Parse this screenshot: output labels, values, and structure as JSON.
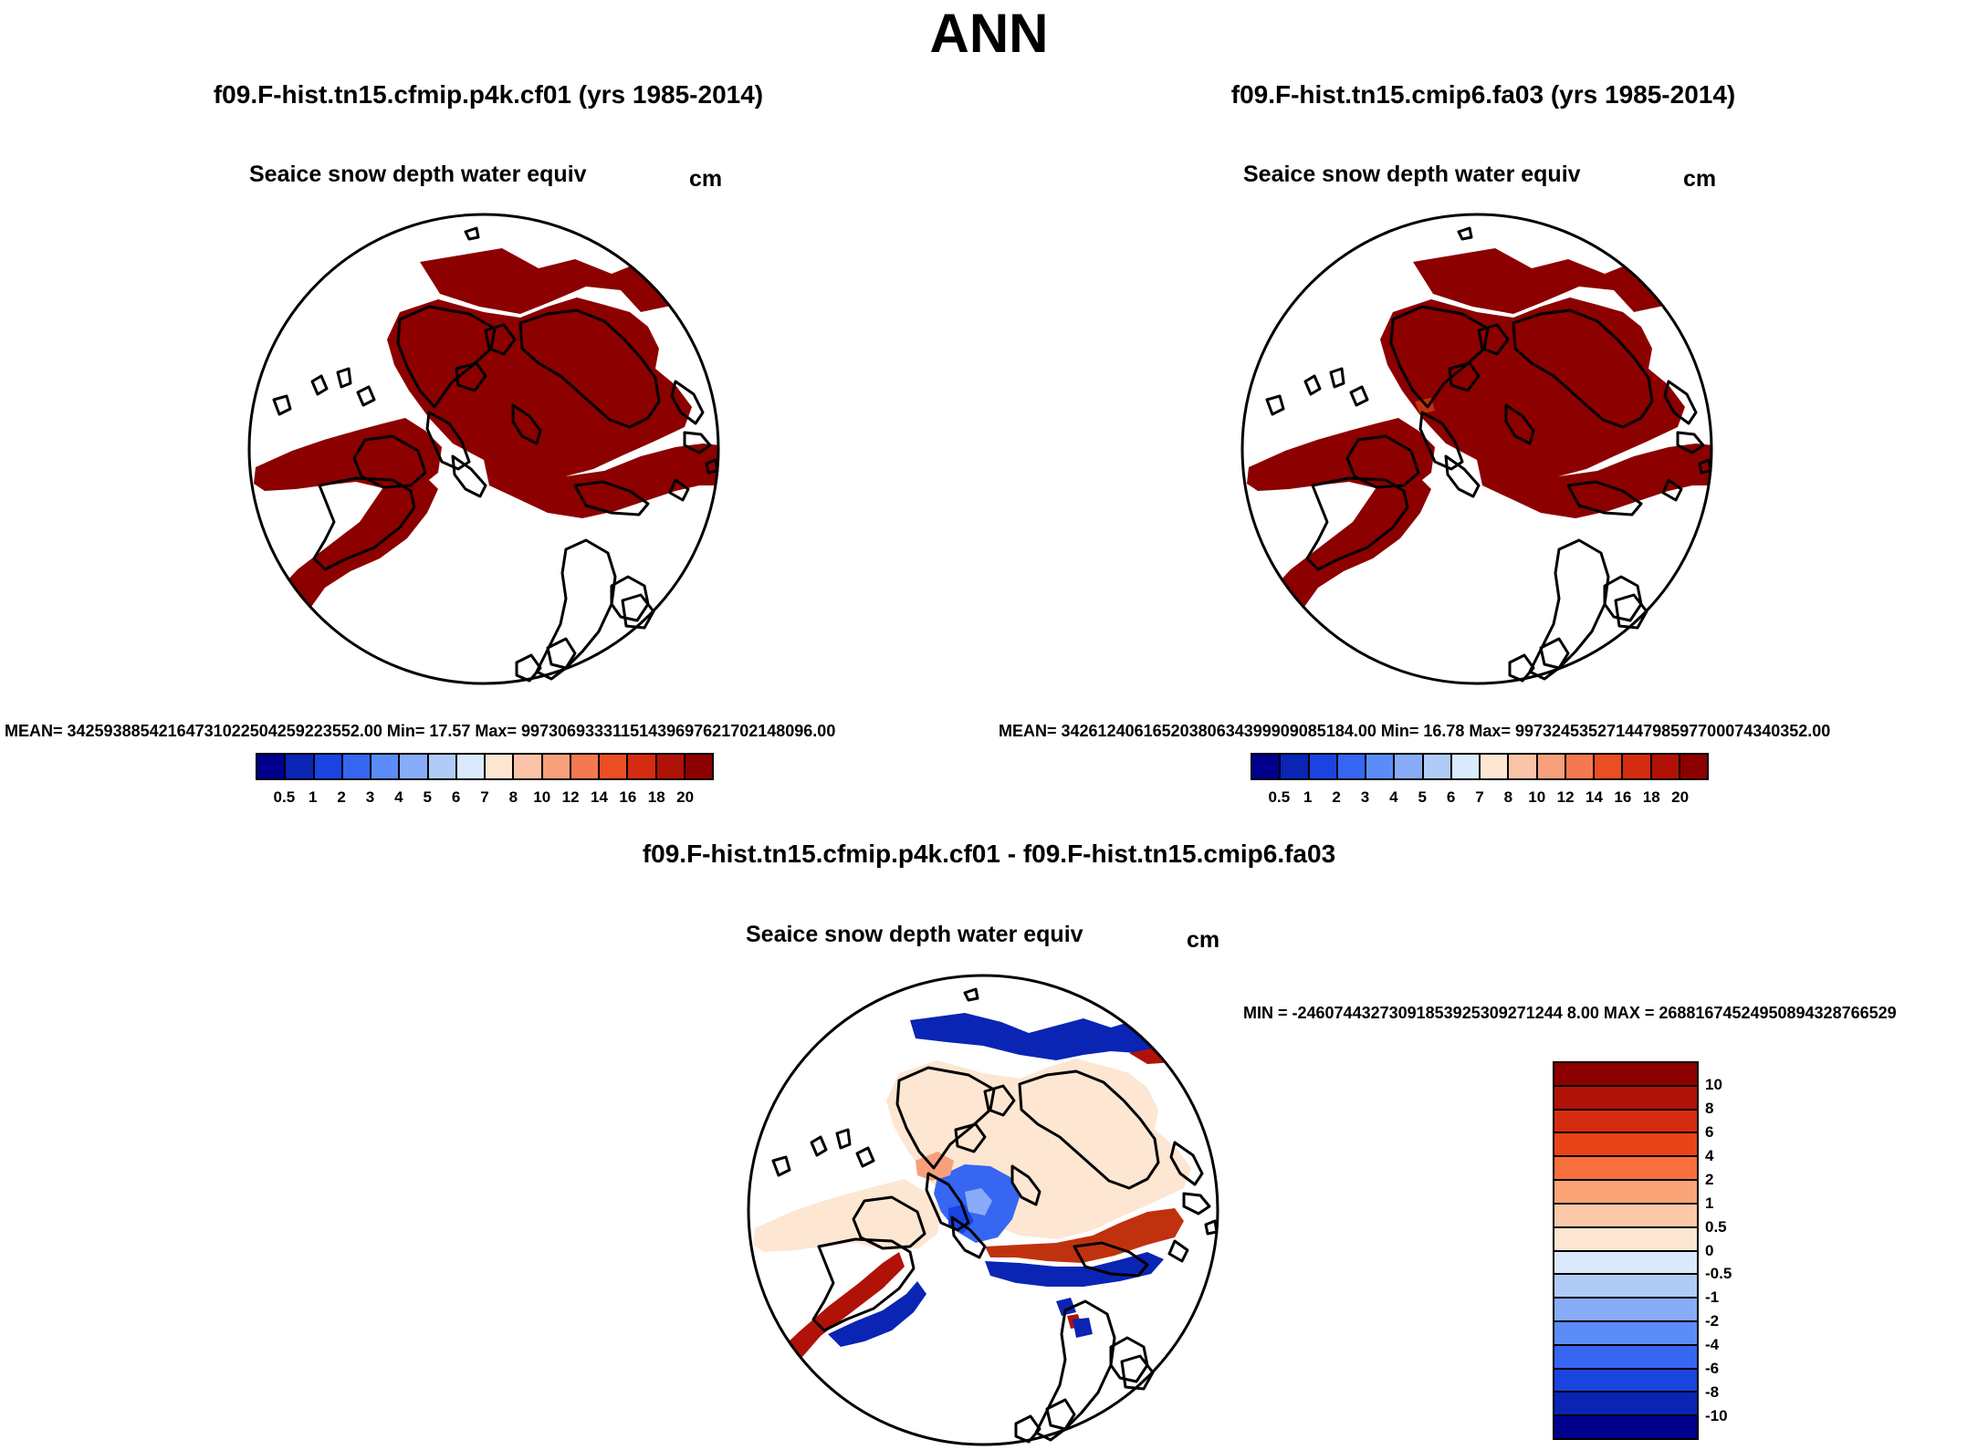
{
  "figure": {
    "title": "ANN",
    "panels": {
      "top_left": {
        "case_title": "f09.F-hist.tn15.cfmip.p4k.cf01 (yrs 1985-2014)",
        "variable": "Seaice snow depth water equiv",
        "units": "cm",
        "stats": "MEAN= 34259388542164731022504259223552.00  Min=  17.57  Max= 99730693331151439697621702148096.00"
      },
      "top_right": {
        "case_title": "f09.F-hist.tn15.cmip6.fa03 (yrs 1985-2014)",
        "variable": "Seaice snow depth water equiv",
        "units": "cm",
        "stats": "MEAN= 34261240616520380634399909085184.00  Min=  16.78  Max= 99732453527144798597700074340352.00"
      },
      "bottom": {
        "case_title": "f09.F-hist.tn15.cfmip.p4k.cf01 - f09.F-hist.tn15.cmip6.fa03",
        "variable": "Seaice snow depth water equiv",
        "units": "cm",
        "stats": "MIN = -24607443273091853925309271244 8.00 MAX = 26881674524950894328766529"
      }
    },
    "colorbar_abs": {
      "labels": [
        "0.5",
        "1",
        "2",
        "3",
        "4",
        "5",
        "6",
        "7",
        "8",
        "10",
        "12",
        "14",
        "16",
        "18",
        "20"
      ],
      "colors": [
        "#00008c",
        "#0a24b4",
        "#1a44e0",
        "#3666f2",
        "#5c8cf8",
        "#88acf8",
        "#b0ccf6",
        "#daeafc",
        "#fde6d2",
        "#fbc4a8",
        "#f8a07c",
        "#f47850",
        "#ea4e22",
        "#d42c10",
        "#b01208",
        "#8c0000"
      ]
    },
    "colorbar_diff": {
      "labels": [
        "10",
        "8",
        "6",
        "4",
        "2",
        "1",
        "0.5",
        "0",
        "-0.5",
        "-1",
        "-2",
        "-4",
        "-6",
        "-8",
        "-10"
      ],
      "colors": [
        "#8c0000",
        "#b01208",
        "#d42c10",
        "#e84418",
        "#f8703c",
        "#faa478",
        "#fccaa8",
        "#fde6d2",
        "#daeafc",
        "#b0ccf6",
        "#88acf8",
        "#5c8cf8",
        "#3666f2",
        "#1a44e0",
        "#0a24b4",
        "#00008c"
      ]
    }
  }
}
